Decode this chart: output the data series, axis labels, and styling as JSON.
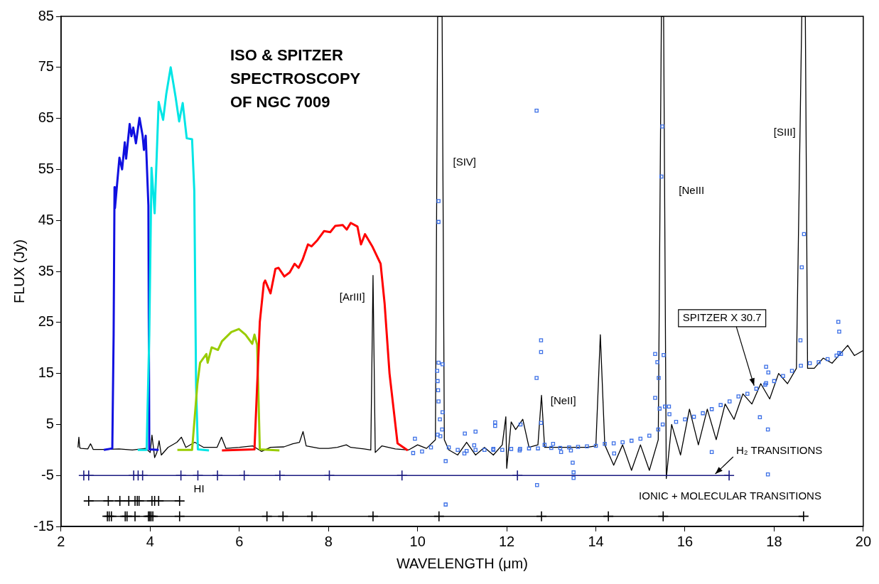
{
  "chart_data": {
    "type": "line",
    "title": "ISO & SPITZER SPECTROSCOPY OF NGC 7009",
    "xlabel": "WAVELENGTH (μm)",
    "ylabel": "FLUX (Jy)",
    "xlim": [
      2,
      20
    ],
    "xticks": [
      2,
      4,
      6,
      8,
      10,
      12,
      14,
      16,
      18,
      20
    ],
    "ylim": [
      -15,
      85
    ],
    "yticks": [
      -15,
      -5,
      5,
      15,
      25,
      35,
      45,
      55,
      65,
      75,
      85
    ],
    "grid": false,
    "series": [
      {
        "color": "#000000",
        "x": [
          2.38,
          2.4,
          2.42,
          2.45,
          2.6,
          2.66,
          2.68,
          2.72,
          3.0,
          3.3,
          3.6,
          3.9,
          4.0,
          4.04,
          4.1,
          4.15,
          4.2,
          4.25,
          4.4,
          4.6,
          4.7,
          4.8,
          5.0,
          5.2,
          5.5,
          5.6,
          5.7,
          6.0,
          6.3,
          6.5,
          6.7,
          7.0,
          7.2,
          7.35,
          7.43,
          7.5,
          7.8,
          8.0,
          8.2,
          8.4,
          8.5,
          8.8,
          8.95,
          9.0,
          9.05,
          9.2,
          9.5,
          9.8,
          10.0,
          10.2,
          10.4,
          10.45,
          10.55,
          10.6,
          10.7,
          10.9,
          11.1,
          11.3,
          11.5,
          11.7,
          11.9,
          11.98,
          12.0,
          12.1,
          12.2,
          12.36,
          12.5,
          12.7,
          12.78,
          12.85,
          13.0,
          13.5,
          13.8,
          14.0,
          14.1,
          14.2,
          14.3,
          14.4,
          14.6,
          14.8,
          15.0,
          15.2,
          15.4,
          15.47,
          15.52,
          15.58,
          15.7,
          15.9,
          16.1,
          16.3,
          16.5,
          16.7,
          16.9,
          17.1,
          17.3,
          17.5,
          17.7,
          17.9,
          18.1,
          18.3,
          18.5,
          18.62,
          18.7,
          18.75,
          18.9,
          19.1,
          19.3,
          19.5,
          19.65,
          19.8,
          20.0
        ],
        "values": [
          0.5,
          2.5,
          0.4,
          0.3,
          0.2,
          1.2,
          0.9,
          0.1,
          0.1,
          0.2,
          0.0,
          0.3,
          -0.5,
          2.9,
          -1.5,
          -0.5,
          1.8,
          -1.0,
          0.5,
          1.5,
          2.5,
          0.5,
          1.5,
          0.5,
          0.5,
          2.5,
          0.3,
          0.5,
          0.8,
          -0.3,
          0.5,
          0.6,
          1.2,
          1.5,
          3.6,
          0.8,
          0.3,
          0.3,
          0.5,
          1.0,
          0.5,
          0.2,
          0.0,
          34.2,
          -0.5,
          0.8,
          0.2,
          0.0,
          1.0,
          0.3,
          2.0,
          85,
          85,
          2.0,
          0.0,
          -1.0,
          1.5,
          -1.0,
          0.5,
          -1.0,
          1.0,
          6.5,
          -3.6,
          5.5,
          4.0,
          6.0,
          0.5,
          1.0,
          10.7,
          0.5,
          0.5,
          0.5,
          0.5,
          0.8,
          22.6,
          1.0,
          -1.0,
          -3.0,
          1.0,
          -4.0,
          1.0,
          -4.0,
          2.0,
          85,
          85,
          -5.6,
          5.0,
          -1.0,
          8.0,
          1.0,
          8.0,
          2.0,
          9.0,
          6.0,
          11.0,
          9.0,
          13.0,
          10.0,
          15.0,
          13.0,
          16.0,
          85,
          85,
          16.0,
          16.0,
          18.0,
          17.0,
          19.0,
          20.5,
          18.5,
          19.5
        ]
      },
      {
        "color": "#1010e0",
        "x": [
          2.96,
          3.15,
          3.18,
          3.2,
          3.21,
          3.31,
          3.37,
          3.43,
          3.46,
          3.54,
          3.58,
          3.62,
          3.68,
          3.76,
          3.83,
          3.86,
          3.9,
          3.96,
          3.98,
          4.19
        ],
        "values": [
          0.0,
          0.3,
          22.6,
          51.5,
          47.4,
          57.3,
          55.0,
          60.3,
          57.1,
          63.9,
          61.5,
          63.2,
          60.1,
          65.1,
          61.6,
          58.8,
          61.6,
          47.9,
          0.1,
          0.0
        ]
      },
      {
        "color": "#00e5e5",
        "x": [
          3.72,
          3.92,
          3.98,
          4.03,
          4.1,
          4.19,
          4.29,
          4.36,
          4.46,
          4.57,
          4.65,
          4.73,
          4.82,
          4.94,
          4.99,
          5.03,
          5.07,
          5.32
        ],
        "values": [
          0.0,
          0.0,
          22.6,
          55.3,
          46.4,
          68.2,
          64.7,
          69.7,
          75.0,
          69.2,
          64.4,
          68.0,
          61.1,
          60.9,
          50.7,
          12.5,
          0.1,
          -0.1
        ]
      },
      {
        "color": "#99cc00",
        "x": [
          4.61,
          4.94,
          5.06,
          5.12,
          5.26,
          5.29,
          5.38,
          5.52,
          5.61,
          5.82,
          5.99,
          6.14,
          6.29,
          6.34,
          6.4,
          6.46,
          6.9
        ],
        "values": [
          0.0,
          0.0,
          13.0,
          17.1,
          18.8,
          17.1,
          20.1,
          19.6,
          21.3,
          23.1,
          23.7,
          22.6,
          20.8,
          22.6,
          20.6,
          0.1,
          -0.1
        ]
      },
      {
        "color": "#ff0000",
        "x": [
          5.61,
          6.34,
          6.46,
          6.55,
          6.58,
          6.7,
          6.81,
          6.88,
          7.01,
          7.13,
          7.24,
          7.33,
          7.42,
          7.54,
          7.62,
          7.75,
          7.9,
          8.04,
          8.15,
          8.32,
          8.41,
          8.5,
          8.65,
          8.73,
          8.82,
          8.99,
          9.17,
          9.26,
          9.37,
          9.55,
          9.78
        ],
        "values": [
          -0.1,
          0.1,
          25.1,
          32.7,
          33.2,
          30.7,
          35.5,
          35.7,
          34.0,
          34.8,
          36.5,
          35.7,
          37.3,
          40.3,
          39.9,
          41.1,
          42.9,
          42.7,
          43.9,
          44.1,
          43.2,
          44.5,
          43.8,
          40.3,
          42.3,
          39.8,
          36.5,
          28.7,
          15.0,
          1.3,
          -0.1
        ]
      },
      {
        "type": "scatter",
        "marker": "square",
        "color": "#3b6fe6",
        "x": [
          9.9,
          10.1,
          10.3,
          10.45,
          10.5,
          10.55,
          10.7,
          10.9,
          11.1,
          11.3,
          11.5,
          11.7,
          11.9,
          12.1,
          12.3,
          12.5,
          12.7,
          12.85,
          13.0,
          13.2,
          13.4,
          13.6,
          13.8,
          14.0,
          14.2,
          14.4,
          14.6,
          14.8,
          15.0,
          15.2,
          15.4,
          15.5,
          15.55,
          15.65,
          15.8,
          16.0,
          16.2,
          16.4,
          16.6,
          16.8,
          17.0,
          17.2,
          17.4,
          17.6,
          17.8,
          18.0,
          18.2,
          18.4,
          18.6,
          18.8,
          19.0,
          19.2,
          19.4,
          19.5,
          10.47,
          10.47,
          10.47,
          10.56,
          10.44,
          10.45,
          10.46,
          10.47,
          10.56,
          10.51,
          10.63,
          9.94,
          11.05,
          11.06,
          11.3,
          11.27,
          11.7,
          11.74,
          11.74,
          12.29,
          12.31,
          12.68,
          12.67,
          12.67,
          12.77,
          12.77,
          12.77,
          13.04,
          13.22,
          13.44,
          13.48,
          13.5,
          13.5,
          14.41,
          15.33,
          15.38,
          15.41,
          15.33,
          15.43,
          15.49,
          15.47,
          15.52,
          15.64,
          16.6,
          17.68,
          17.86,
          17.86,
          17.82,
          17.87,
          17.82,
          18.59,
          18.62,
          18.67,
          19.44,
          19.46,
          19.46,
          10.63
        ],
        "values": [
          -0.6,
          -0.3,
          0.5,
          3.0,
          6.0,
          4.0,
          0.5,
          0.0,
          -0.2,
          0.0,
          0.0,
          0.2,
          0.0,
          0.2,
          0.2,
          0.3,
          0.3,
          1.0,
          0.4,
          0.4,
          0.5,
          0.6,
          0.7,
          0.8,
          1.2,
          1.3,
          1.5,
          1.8,
          2.2,
          2.8,
          4.0,
          5.0,
          8.5,
          7.0,
          5.5,
          6.0,
          6.5,
          7.2,
          8.0,
          8.8,
          9.5,
          10.5,
          11.0,
          12.0,
          12.8,
          13.5,
          14.5,
          15.5,
          16.5,
          17.0,
          17.2,
          17.8,
          18.5,
          18.8,
          48.8,
          44.7,
          17.1,
          16.8,
          15.5,
          13.5,
          11.7,
          9.5,
          7.4,
          2.7,
          -2.2,
          2.2,
          -0.7,
          3.2,
          3.6,
          0.9,
          0.0,
          5.4,
          4.7,
          -0.1,
          5.0,
          -6.9,
          14.1,
          66.5,
          21.5,
          19.2,
          5.3,
          1.2,
          -0.4,
          -0.1,
          -2.5,
          -4.4,
          -5.5,
          -0.7,
          18.8,
          17.2,
          14.1,
          10.2,
          8.1,
          63.4,
          53.6,
          18.6,
          8.5,
          -0.4,
          6.4,
          4.0,
          -4.8,
          13.1,
          15.2,
          16.3,
          21.5,
          35.8,
          42.3,
          25.1,
          23.2,
          19.0,
          -10.7
        ]
      },
      {
        "marker": "cross",
        "color": "#1a1a80",
        "x": [
          2.51,
          2.62,
          3.63,
          3.73,
          3.83,
          4.69,
          5.07,
          5.51,
          6.11,
          6.91,
          8.02,
          9.65,
          12.24,
          16.99
        ],
        "values": [
          -5,
          -5,
          -5,
          -5,
          -5,
          -5,
          -5,
          -5,
          -5,
          -5,
          -5,
          -5,
          -5,
          -5
        ]
      },
      {
        "marker": "cross",
        "color": "#000000",
        "x": [
          2.62,
          3.06,
          3.32,
          3.52,
          3.66,
          3.71,
          3.75,
          4.04,
          4.1,
          4.19,
          4.66
        ],
        "values": [
          -10,
          -10,
          -10,
          -10,
          -10,
          -10,
          -10,
          -10,
          -10,
          -10,
          -10
        ]
      },
      {
        "marker": "cross",
        "color": "#000000",
        "x": [
          3.04,
          3.08,
          3.13,
          3.44,
          3.48,
          3.66,
          3.96,
          3.99,
          4.02,
          4.06,
          4.66,
          6.62,
          6.98,
          7.63,
          9.0,
          10.48,
          12.78,
          14.28,
          15.51,
          18.66
        ],
        "values": [
          -13,
          -13,
          -13,
          -13,
          -13,
          -13,
          -13,
          -13,
          -13,
          -13,
          -13,
          -13,
          -13,
          -13,
          -13,
          -13,
          -13,
          -13,
          -13,
          -13
        ]
      }
    ],
    "annotations": [
      "[ArIII]",
      "[SIV]",
      "[NeII]",
      "[NeIII",
      "[SIII]",
      {
        "text": "SPITZER X 30.7",
        "x": 17.55,
        "y": 12.6
      },
      {
        "text": "H₂ TRANSITIONS",
        "x": 16.68,
        "y": -4.7
      },
      "HI",
      "IONIC + MOLECULAR TRANSITIONS"
    ]
  }
}
